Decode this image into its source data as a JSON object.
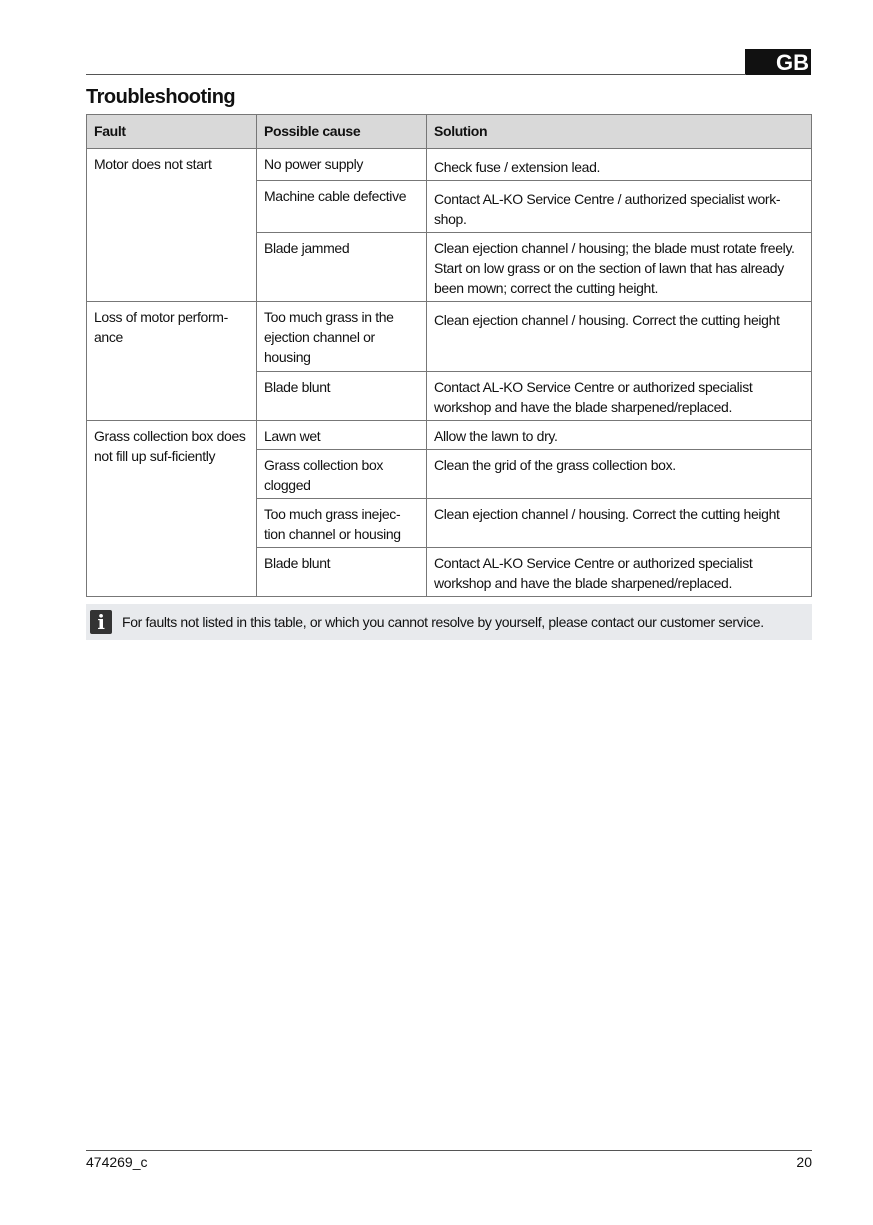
{
  "header": {
    "language": "GB",
    "title": "Troubleshooting"
  },
  "table": {
    "columns": [
      "Fault",
      "Possible cause",
      "Solution"
    ],
    "groups": [
      {
        "fault": "Motor does not start",
        "rows": [
          {
            "cause": "No power supply",
            "solution": "Check fuse / extension lead."
          },
          {
            "cause": "Machine cable defective",
            "solution": "Contact AL-KO Service Centre / authorized specialist work-shop."
          },
          {
            "cause": "Blade jammed",
            "solution": "Clean ejection channel / housing; the blade must rotate freely. Start on low grass or on the section of lawn that has already been mown; correct the cutting height."
          }
        ]
      },
      {
        "fault": "Loss of motor perform-ance",
        "rows": [
          {
            "cause": "Too much grass in the ejection channel or housing",
            "solution": "Clean ejection channel / housing. Correct the cutting height"
          },
          {
            "cause": "Blade blunt",
            "solution": "Contact AL-KO Service Centre or authorized specialist workshop and have the blade sharpened/replaced."
          }
        ]
      },
      {
        "fault": "Grass collection box does not fill up suf-ficiently",
        "rows": [
          {
            "cause": "Lawn wet",
            "solution": "Allow the lawn to dry."
          },
          {
            "cause": "Grass collection box clogged",
            "solution": "Clean the grid of the grass collection box."
          },
          {
            "cause": "Too much grass inejec-tion channel or housing",
            "solution": "Clean ejection channel / housing. Correct the cutting height"
          },
          {
            "cause": "Blade blunt",
            "solution": "Contact AL-KO Service Centre or authorized specialist workshop and have the blade sharpened/replaced."
          }
        ]
      }
    ]
  },
  "note": {
    "icon": "info-icon",
    "text": "For faults not listed in this table, or which you cannot resolve by yourself, please contact our customer service."
  },
  "footer": {
    "doc_number": "474269_c",
    "page_number": "20"
  }
}
